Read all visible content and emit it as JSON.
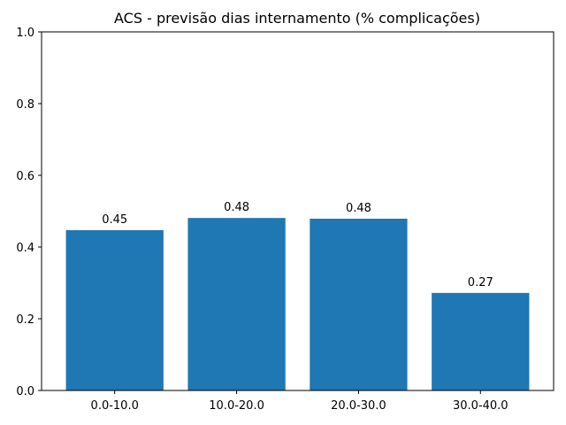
{
  "chart_data": {
    "type": "bar",
    "title": "ACS - previsão dias internamento (% complicações)",
    "xlabel": "",
    "ylabel": "",
    "categories": [
      "0.0-10.0",
      "10.0-20.0",
      "20.0-30.0",
      "30.0-40.0"
    ],
    "values": [
      0.447,
      0.481,
      0.479,
      0.272
    ],
    "data_labels": [
      "0.45",
      "0.48",
      "0.48",
      "0.27"
    ],
    "ylim": [
      0,
      1.0
    ],
    "yticks": [
      0.0,
      0.2,
      0.4,
      0.6,
      0.8,
      1.0
    ],
    "ytick_labels": [
      "0.0",
      "0.2",
      "0.4",
      "0.6",
      "0.8",
      "1.0"
    ],
    "grid": false,
    "bar_color": "#1f77b4"
  }
}
